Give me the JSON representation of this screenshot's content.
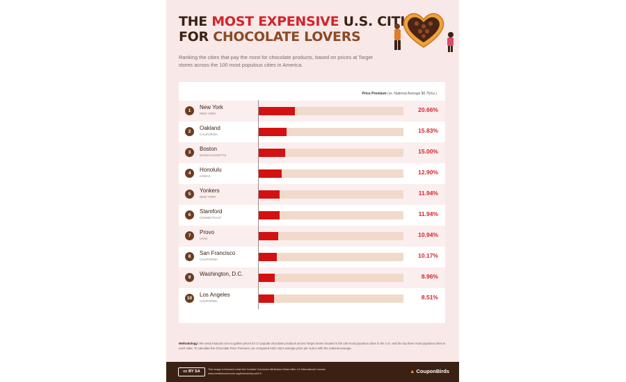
{
  "title": {
    "line1_pre": "THE ",
    "line1_accent": "MOST EXPENSIVE",
    "line1_post": " U.S. CITIES",
    "line2_pre": "FOR ",
    "line2_accent": "CHOCOLATE LOVERS"
  },
  "subtitle": "Ranking the cities that pay the most for chocolate products, based on prices at Target stores across the 100 most populous cities in America.",
  "column_header": {
    "label": "Price Premium",
    "note": "(vs. National Average $0.75/oz.)"
  },
  "chart_data": {
    "type": "bar",
    "orientation": "horizontal",
    "categories": [
      "New York",
      "Oakland",
      "Boston",
      "Honolulu",
      "Yonkers",
      "Stamford",
      "Provo",
      "San Francisco",
      "Washington, D.C.",
      "Los Angeles"
    ],
    "values": [
      20.66,
      15.83,
      15.0,
      12.9,
      11.94,
      11.94,
      10.94,
      10.17,
      8.96,
      8.51
    ],
    "xlim": [
      0,
      82
    ],
    "unit": "%",
    "colors": {
      "bar": "#d41112",
      "track": "#f1dacb",
      "value_text": "#d3242a",
      "rank_badge": "#6b3c1f"
    },
    "rows": [
      {
        "rank": "1",
        "city": "New York",
        "state": "NEW YORK",
        "value_label": "20.66%"
      },
      {
        "rank": "2",
        "city": "Oakland",
        "state": "CALIFORNIA",
        "value_label": "15.83%"
      },
      {
        "rank": "3",
        "city": "Boston",
        "state": "MASSACHUSETTS",
        "value_label": "15.00%"
      },
      {
        "rank": "4",
        "city": "Honolulu",
        "state": "HAWAII",
        "value_label": "12.90%"
      },
      {
        "rank": "5",
        "city": "Yonkers",
        "state": "NEW YORK",
        "value_label": "11.94%"
      },
      {
        "rank": "6",
        "city": "Stamford",
        "state": "CONNECTICUT",
        "value_label": "11.94%"
      },
      {
        "rank": "7",
        "city": "Provo",
        "state": "UTAH",
        "value_label": "10.94%"
      },
      {
        "rank": "8",
        "city": "San Francisco",
        "state": "CALIFORNIA",
        "value_label": "10.17%"
      },
      {
        "rank": "9",
        "city": "Washington, D.C.",
        "state": "",
        "value_label": "8.96%"
      },
      {
        "rank": "10",
        "city": "Los Angeles",
        "state": "CALIFORNIA",
        "value_label": "8.51%"
      }
    ]
  },
  "methodology": {
    "label": "Methodology:",
    "text": "We used instacart.com to gather prices for 17 popular chocolate products across Target stores located in the 100 most populous cities in the U.S. and the top three most populous cities in each state. To calculate the Chocolate Price Premium, we compared each city's average price per ounce with the national average."
  },
  "footer": {
    "cc_badge": "cc BY SA",
    "license_line1": "This image is licensed under the Creative Commons Attribution-Share Alike 4.0 International License",
    "license_line2": "www.creativecommons.org/licenses/by-sa/4.0",
    "brand": "CouponBirds",
    "brand_icon": "bird-icon"
  },
  "illustration": "heart-chocolate-box-illustration"
}
